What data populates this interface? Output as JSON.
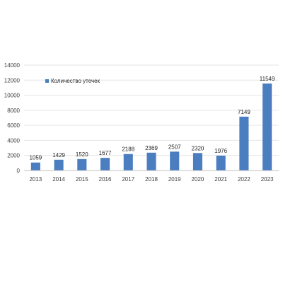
{
  "chart_data": {
    "type": "bar",
    "categories": [
      "2013",
      "2014",
      "2015",
      "2016",
      "2017",
      "2018",
      "2019",
      "2020",
      "2021",
      "2022",
      "2023"
    ],
    "series": [
      {
        "name": "Количество утечек",
        "values": [
          1059,
          1429,
          1520,
          1677,
          2188,
          2369,
          2507,
          2320,
          1976,
          7149,
          11549
        ],
        "color": "#4a7ec0"
      }
    ],
    "ylim": [
      0,
      14000
    ],
    "yticks": [
      0,
      2000,
      4000,
      6000,
      8000,
      10000,
      12000,
      14000
    ],
    "grid": true,
    "legend_position": "top-left",
    "data_labels": true
  }
}
